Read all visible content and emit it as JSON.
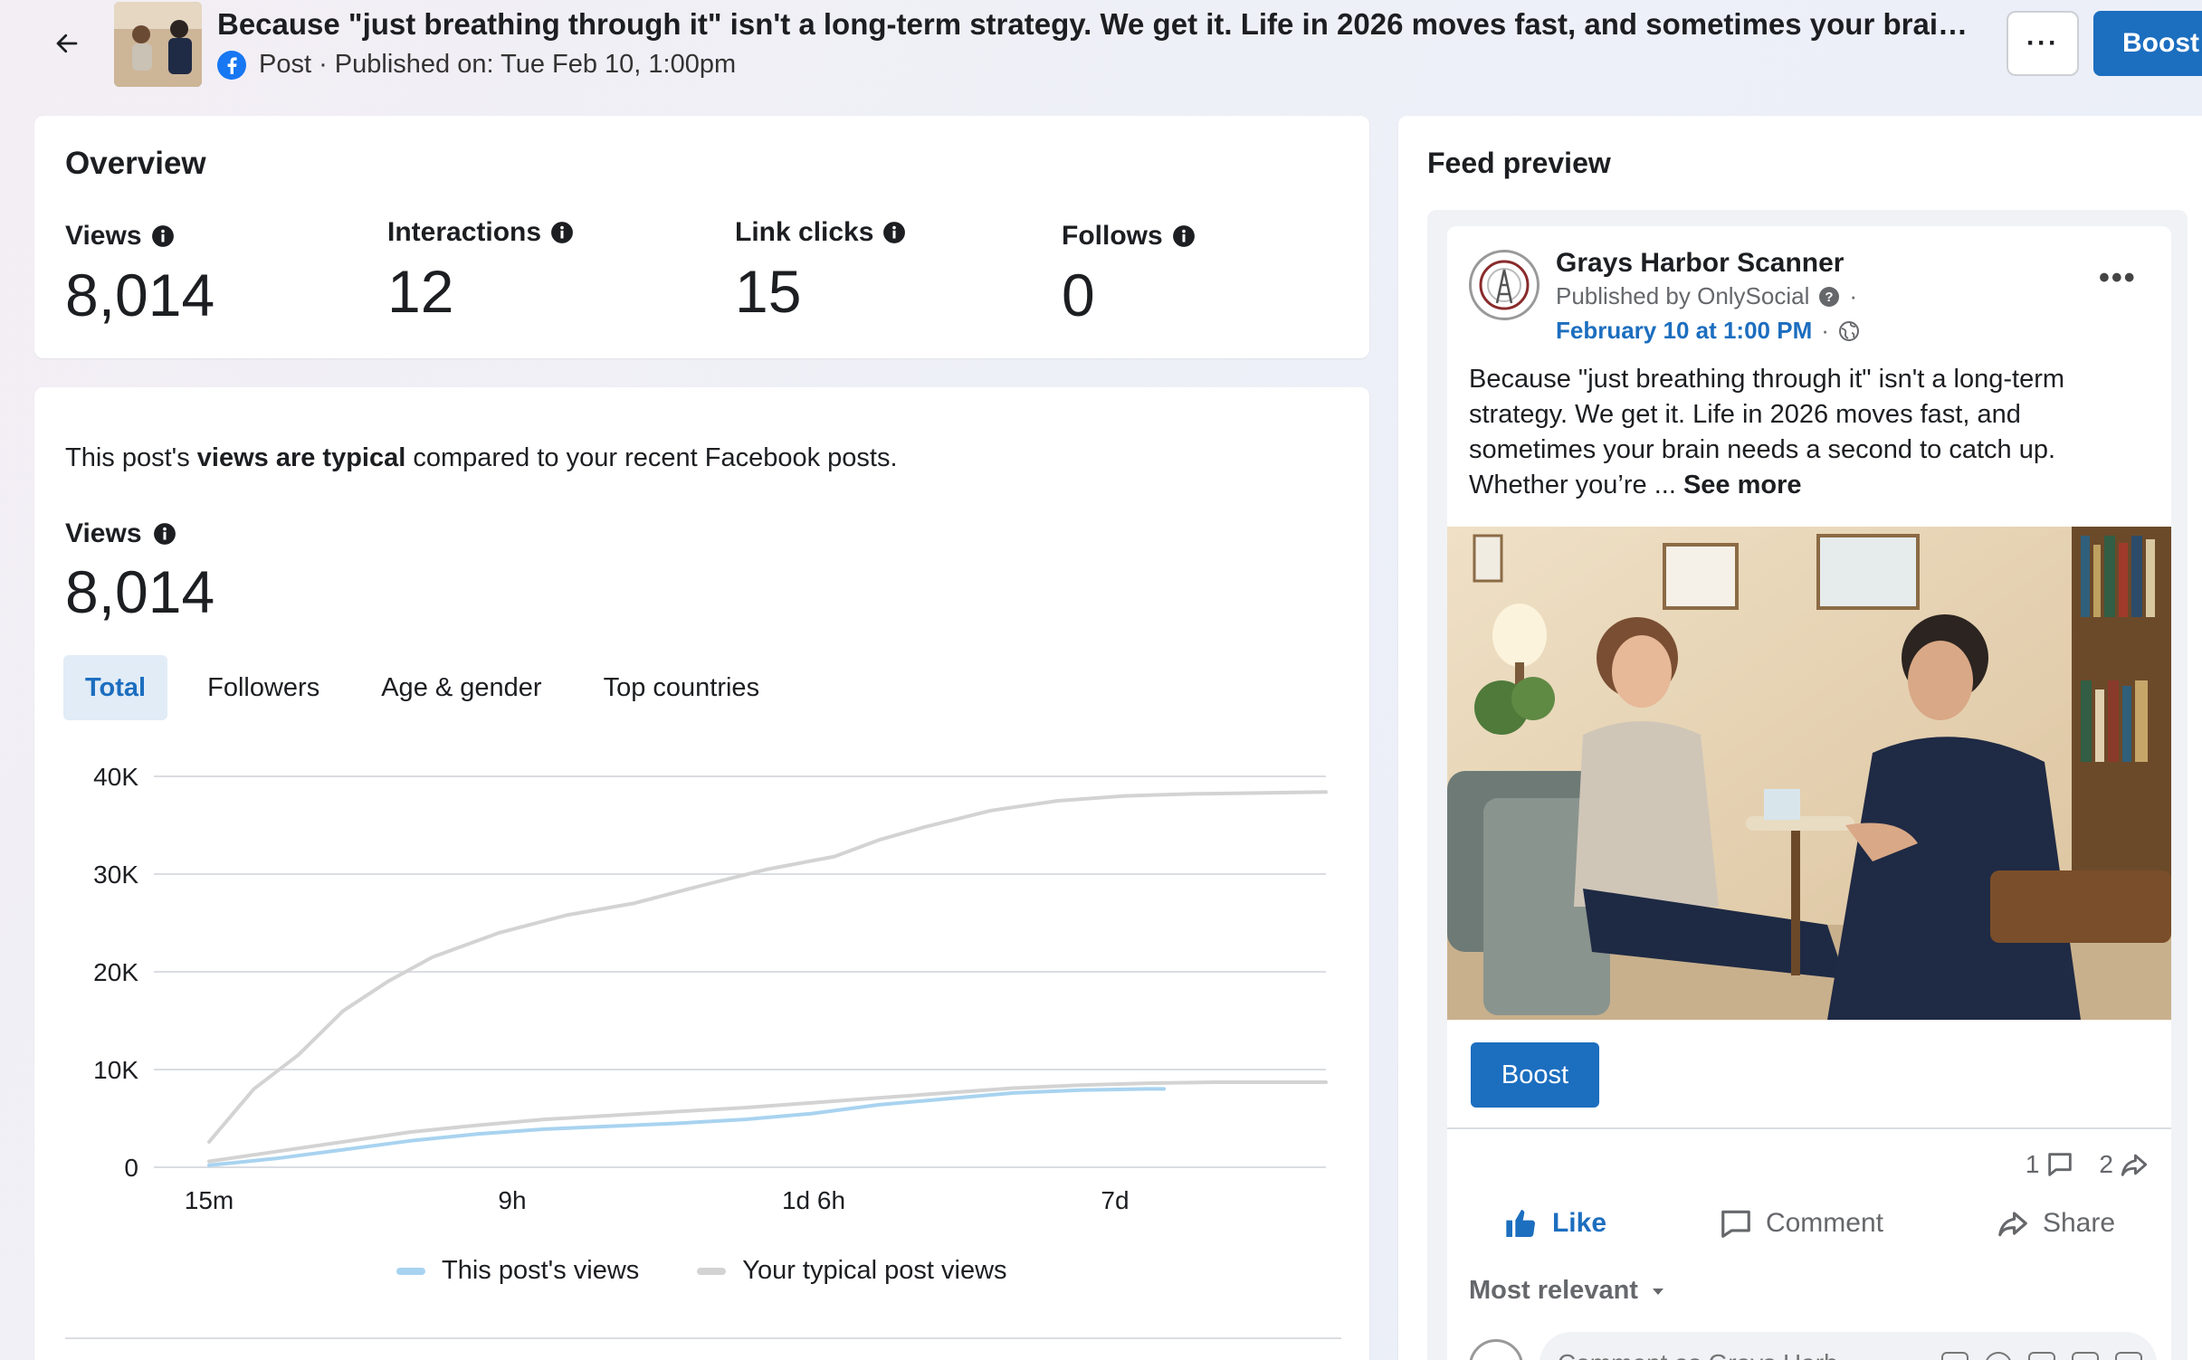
{
  "header": {
    "title": "Because \"just breathing through it\" isn't a long-term strategy. We get it. Life in 2026 moves fast, and sometimes your brain needs ...",
    "subline": "Post · Published on: Tue Feb 10, 1:00pm",
    "more_label": "···",
    "boost_label": "Boost"
  },
  "overview": {
    "title": "Overview",
    "metrics": [
      {
        "label": "Views",
        "value": "8,014"
      },
      {
        "label": "Interactions",
        "value": "12"
      },
      {
        "label": "Link clicks",
        "value": "15"
      },
      {
        "label": "Follows",
        "value": "0"
      }
    ]
  },
  "views_card": {
    "typical_prefix": "This post's ",
    "typical_bold": "views are typical",
    "typical_suffix": " compared to your recent Facebook posts.",
    "label": "Views",
    "value": "8,014",
    "tabs": [
      "Total",
      "Followers",
      "Age & gender",
      "Top countries"
    ],
    "legend": [
      "This post's views",
      "Your typical post views"
    ]
  },
  "chart_data": {
    "type": "line",
    "x_ticks": [
      "15m",
      "9h",
      "1d 6h",
      "7d"
    ],
    "y_ticks": [
      "40K",
      "30K",
      "20K",
      "10K",
      "0"
    ],
    "ylim": [
      0,
      40000
    ],
    "colors": {
      "this_post": "#a8d3f0",
      "typical": "#d3d3d3"
    },
    "series": [
      {
        "name": "This post's views",
        "x": [
          0,
          0.06,
          0.12,
          0.18,
          0.24,
          0.3,
          0.36,
          0.42,
          0.48,
          0.54,
          0.6,
          0.66,
          0.72,
          0.78,
          0.84,
          0.855
        ],
        "values": [
          200,
          900,
          1800,
          2700,
          3400,
          3900,
          4200,
          4500,
          4900,
          5500,
          6400,
          7000,
          7600,
          7900,
          8014,
          8014
        ]
      },
      {
        "name": "Your typical post views (upper)",
        "x": [
          0,
          0.04,
          0.08,
          0.12,
          0.16,
          0.2,
          0.26,
          0.32,
          0.38,
          0.44,
          0.5,
          0.56,
          0.6,
          0.64,
          0.7,
          0.76,
          0.82,
          0.88,
          0.94,
          1.0
        ],
        "values": [
          2600,
          8000,
          11500,
          16000,
          19000,
          21500,
          24000,
          25800,
          27000,
          28800,
          30500,
          31800,
          33500,
          34800,
          36500,
          37500,
          38000,
          38200,
          38300,
          38400
        ]
      },
      {
        "name": "Your typical post views (lower)",
        "x": [
          0,
          0.06,
          0.12,
          0.18,
          0.24,
          0.3,
          0.36,
          0.42,
          0.48,
          0.54,
          0.6,
          0.66,
          0.72,
          0.78,
          0.84,
          0.9,
          0.96,
          1.0
        ],
        "values": [
          600,
          1600,
          2600,
          3600,
          4300,
          4900,
          5300,
          5700,
          6100,
          6600,
          7100,
          7600,
          8100,
          8400,
          8600,
          8700,
          8700,
          8700
        ]
      }
    ]
  },
  "feed": {
    "title": "Feed preview",
    "page_name": "Grays Harbor Scanner",
    "published_by": "Published by OnlySocial",
    "date": "February 10 at 1:00 PM",
    "text": "Because \"just breathing through it\" isn't a long-term strategy. We get it. Life in 2026 moves fast, and sometimes your brain needs a second to catch up. Whether you’re ... ",
    "see_more": "See more",
    "boost_label": "Boost",
    "comment_count": "1",
    "share_count": "2",
    "like": "Like",
    "comment": "Comment",
    "share": "Share",
    "most_relevant": "Most relevant",
    "comment_placeholder": "Comment as Grays Harb"
  }
}
